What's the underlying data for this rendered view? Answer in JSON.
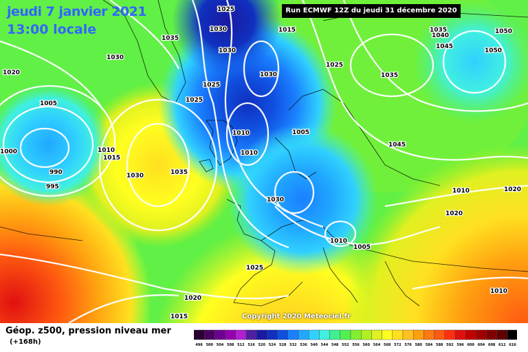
{
  "header": {
    "date": "jeudi 7 janvier 2021",
    "local_time": "13:00 locale",
    "run_info": "Run ECMWF 12Z du jeudi 31 décembre 2020"
  },
  "copyright": "Copyright 2020 Meteociel.fr",
  "footer": {
    "title": "Géop. z500, pression niveau mer",
    "subtitle": "(+168h)"
  },
  "legend": {
    "values": [
      "496",
      "500",
      "504",
      "508",
      "512",
      "516",
      "520",
      "524",
      "528",
      "532",
      "536",
      "540",
      "544",
      "548",
      "552",
      "556",
      "560",
      "564",
      "568",
      "572",
      "576",
      "580",
      "584",
      "588",
      "592",
      "596",
      "600",
      "604",
      "608",
      "612",
      "616"
    ],
    "colors": [
      "#2b0030",
      "#4b0060",
      "#6d0090",
      "#9400b0",
      "#b020d0",
      "#5020a0",
      "#1a1aa0",
      "#1030c0",
      "#1050e0",
      "#1a80ff",
      "#20a8ff",
      "#30d0ff",
      "#40f0e0",
      "#40f090",
      "#50f050",
      "#80f030",
      "#b0f020",
      "#e0f020",
      "#ffff20",
      "#ffe020",
      "#ffc020",
      "#ffa010",
      "#ff7a10",
      "#ff5a10",
      "#ff3010",
      "#e01010",
      "#c00000",
      "#a00000",
      "#800000",
      "#600000",
      "#000000"
    ]
  },
  "isobars": [
    {
      "value": "1025",
      "color": "#000"
    },
    {
      "value": "1030",
      "color": "#000"
    },
    {
      "value": "1035",
      "color": "#000"
    },
    {
      "value": "1030",
      "color": "#000"
    },
    {
      "value": "1020",
      "color": "#000"
    },
    {
      "value": "1005",
      "color": "#000"
    },
    {
      "value": "1000",
      "color": "#000"
    },
    {
      "value": "990",
      "color": "#000"
    },
    {
      "value": "995",
      "color": "#000"
    },
    {
      "value": "1010",
      "color": "#000"
    },
    {
      "value": "1015",
      "color": "#000"
    },
    {
      "value": "1030",
      "color": "#000"
    },
    {
      "value": "1035",
      "color": "#000"
    },
    {
      "value": "1025",
      "color": "#000"
    },
    {
      "value": "1025",
      "color": "#000"
    },
    {
      "value": "1030",
      "color": "#000"
    },
    {
      "value": "1030",
      "color": "#000"
    },
    {
      "value": "1010",
      "color": "#000"
    },
    {
      "value": "1010",
      "color": "#000"
    },
    {
      "value": "1005",
      "color": "#000"
    },
    {
      "value": "1025",
      "color": "#000"
    },
    {
      "value": "1035",
      "color": "#000"
    },
    {
      "value": "1035",
      "color": "#000"
    },
    {
      "value": "1040",
      "color": "#000"
    },
    {
      "value": "1045",
      "color": "#000"
    },
    {
      "value": "1050",
      "color": "#000"
    },
    {
      "value": "1050",
      "color": "#000"
    },
    {
      "value": "1045",
      "color": "#000"
    },
    {
      "value": "1030",
      "color": "#000"
    },
    {
      "value": "1010",
      "color": "#000"
    },
    {
      "value": "1005",
      "color": "#000"
    },
    {
      "value": "1010",
      "color": "#000"
    },
    {
      "value": "1020",
      "color": "#000"
    },
    {
      "value": "1020",
      "color": "#000"
    },
    {
      "value": "1025",
      "color": "#000"
    },
    {
      "value": "1020",
      "color": "#000"
    },
    {
      "value": "1015",
      "color": "#000"
    },
    {
      "value": "1010",
      "color": "#000"
    },
    {
      "value": "1015",
      "color": "#000"
    }
  ]
}
